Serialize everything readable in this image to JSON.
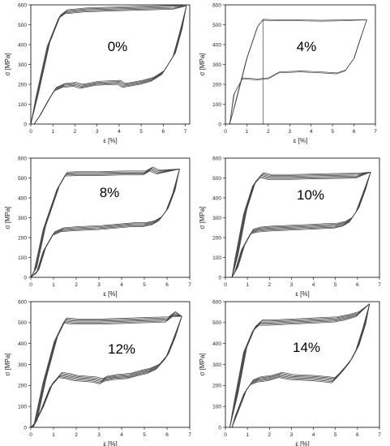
{
  "chart_data": [
    {
      "type": "line",
      "annotation": "0%",
      "xlabel": "ε [%]",
      "ylabel": "σ [MPa]",
      "xlim": [
        0,
        7.2
      ],
      "ylim": [
        0,
        600
      ],
      "xticks": [
        0,
        1,
        2,
        3,
        4,
        5,
        6,
        7
      ],
      "yticks": [
        0,
        100,
        200,
        300,
        400,
        500,
        600
      ],
      "grid": false,
      "cycles": 5,
      "series": [
        {
          "x": [
            0,
            0.3,
            0.8,
            1.3,
            1.6,
            2.5,
            4,
            5.5,
            6.5,
            7.05
          ],
          "y": [
            0,
            150,
            400,
            540,
            565,
            575,
            580,
            585,
            588,
            595
          ]
        },
        {
          "x": [
            7.05,
            6.8,
            6.5,
            6,
            5.5,
            5,
            4.5,
            4.2,
            4,
            3,
            2.3,
            2,
            1.5,
            1.1,
            0.8,
            0.4,
            0.15
          ],
          "y": [
            595,
            470,
            350,
            260,
            225,
            210,
            200,
            195,
            210,
            205,
            190,
            200,
            195,
            175,
            120,
            40,
            0
          ]
        }
      ]
    },
    {
      "type": "line",
      "annotation": "4%",
      "xlabel": "ε [%]",
      "ylabel": "σ [MPa]",
      "xlim": [
        0,
        7
      ],
      "ylim": [
        0,
        600
      ],
      "xticks": [
        0,
        1,
        2,
        3,
        4,
        5,
        6,
        7
      ],
      "yticks": [
        0,
        100,
        200,
        300,
        400,
        500,
        600
      ],
      "grid": false,
      "cycles": 2,
      "series": [
        {
          "x": [
            0.2,
            0.5,
            1,
            1.5,
            1.75,
            2.5,
            3.5,
            4.5,
            5.5,
            6.6
          ],
          "y": [
            0,
            120,
            330,
            490,
            525,
            522,
            522,
            520,
            522,
            525
          ]
        },
        {
          "x": [
            6.6,
            6.3,
            6,
            5.6,
            5.2,
            4.5,
            3.5,
            2.5,
            2,
            1.5,
            0.8,
            0.4,
            0.2
          ],
          "y": [
            525,
            430,
            330,
            270,
            255,
            260,
            265,
            260,
            230,
            225,
            230,
            150,
            0
          ]
        },
        {
          "x": [
            1.75,
            1.75
          ],
          "y": [
            525,
            0
          ]
        }
      ]
    },
    {
      "type": "line",
      "annotation": "8%",
      "xlabel": "ε [%]",
      "ylabel": "σ [MPa]",
      "xlim": [
        0,
        7
      ],
      "ylim": [
        0,
        600
      ],
      "xticks": [
        0,
        1,
        2,
        3,
        4,
        5,
        6,
        7
      ],
      "yticks": [
        0,
        100,
        200,
        300,
        400,
        500,
        600
      ],
      "grid": false,
      "cycles": 5,
      "series": [
        {
          "x": [
            0,
            0.2,
            0.6,
            1.2,
            1.55,
            2,
            3,
            4,
            5,
            5.3,
            5.6,
            6.55
          ],
          "y": [
            0,
            40,
            250,
            450,
            520,
            522,
            522,
            525,
            525,
            545,
            530,
            545
          ]
        },
        {
          "x": [
            6.55,
            6.3,
            6,
            5.7,
            5.4,
            5,
            4.5,
            4,
            3,
            2,
            1.4,
            1,
            0.6,
            0.3,
            0
          ],
          "y": [
            545,
            430,
            340,
            295,
            275,
            265,
            265,
            260,
            250,
            245,
            240,
            220,
            140,
            30,
            0
          ]
        }
      ]
    },
    {
      "type": "line",
      "annotation": "10%",
      "xlabel": "ε [%]",
      "ylabel": "σ [MPa]",
      "xlim": [
        0,
        7
      ],
      "ylim": [
        0,
        600
      ],
      "xticks": [
        0,
        1,
        2,
        3,
        4,
        5,
        6,
        7
      ],
      "yticks": [
        0,
        100,
        200,
        300,
        400,
        500,
        600
      ],
      "grid": false,
      "cycles": 6,
      "series": [
        {
          "x": [
            0.3,
            0.5,
            0.9,
            1.3,
            1.65,
            2,
            3,
            4,
            5,
            6,
            6.6
          ],
          "y": [
            0,
            100,
            330,
            470,
            515,
            505,
            505,
            508,
            510,
            512,
            530
          ]
        },
        {
          "x": [
            6.6,
            6.3,
            6,
            5.7,
            5.4,
            5,
            4.5,
            4,
            3,
            2,
            1.5,
            1.2,
            0.8,
            0.5,
            0.3
          ],
          "y": [
            530,
            430,
            340,
            290,
            270,
            260,
            258,
            255,
            250,
            245,
            240,
            230,
            150,
            40,
            0
          ]
        }
      ]
    },
    {
      "type": "line",
      "annotation": "12%",
      "xlabel": "ε [%]",
      "ylabel": "σ [MPa]",
      "xlim": [
        0,
        7
      ],
      "ylim": [
        0,
        600
      ],
      "xticks": [
        0,
        1,
        2,
        3,
        4,
        5,
        6,
        7
      ],
      "yticks": [
        0,
        100,
        200,
        300,
        400,
        500,
        600
      ],
      "grid": false,
      "cycles": 6,
      "series": [
        {
          "x": [
            0,
            0.2,
            0.6,
            1.1,
            1.5,
            2,
            3,
            4,
            5,
            6,
            6.3,
            6.65
          ],
          "y": [
            0,
            20,
            220,
            420,
            510,
            505,
            505,
            508,
            512,
            515,
            540,
            530
          ]
        },
        {
          "x": [
            6.65,
            6.3,
            6,
            5.6,
            5.2,
            4.8,
            4.3,
            3.7,
            3.3,
            3.1,
            2.8,
            2,
            1.6,
            1.3,
            0.9,
            0.5,
            0.1
          ],
          "y": [
            530,
            420,
            340,
            290,
            270,
            260,
            245,
            240,
            232,
            220,
            228,
            235,
            245,
            250,
            200,
            90,
            0
          ]
        }
      ]
    },
    {
      "type": "line",
      "annotation": "14%",
      "xlabel": "ε [%]",
      "ylabel": "σ [MPa]",
      "xlim": [
        0,
        7
      ],
      "ylim": [
        0,
        600
      ],
      "xticks": [
        0,
        1,
        2,
        3,
        4,
        5,
        6,
        7
      ],
      "yticks": [
        0,
        100,
        200,
        300,
        400,
        500,
        600
      ],
      "grid": false,
      "cycles": 6,
      "series": [
        {
          "x": [
            0.2,
            0.5,
            0.9,
            1.3,
            1.6,
            2,
            3,
            4,
            5,
            5.5,
            6,
            6.55
          ],
          "y": [
            0,
            150,
            370,
            470,
            500,
            500,
            505,
            510,
            515,
            525,
            540,
            590
          ]
        },
        {
          "x": [
            6.55,
            6.3,
            6,
            5.7,
            5.4,
            5.1,
            4.9,
            4.5,
            4,
            3,
            2.5,
            2,
            1.5,
            1.2,
            0.9,
            0.5,
            0.3
          ],
          "y": [
            590,
            480,
            380,
            320,
            280,
            245,
            225,
            230,
            235,
            240,
            250,
            235,
            228,
            215,
            170,
            60,
            0
          ]
        }
      ]
    }
  ]
}
